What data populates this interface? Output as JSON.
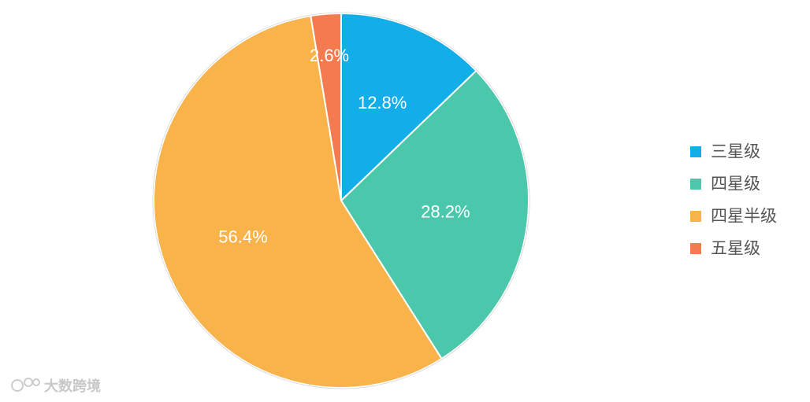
{
  "chart_data": {
    "type": "pie",
    "categories": [
      "三星级",
      "四星级",
      "四星半级",
      "五星级"
    ],
    "values": [
      12.8,
      28.2,
      56.4,
      2.6
    ],
    "value_labels": [
      "12.8%",
      "28.2%",
      "56.4%",
      "2.6%"
    ],
    "colors": [
      "#12aeea",
      "#4bc8ac",
      "#f9b34b",
      "#f47b4f"
    ],
    "legend": "right",
    "watermark": "大数跨境"
  }
}
